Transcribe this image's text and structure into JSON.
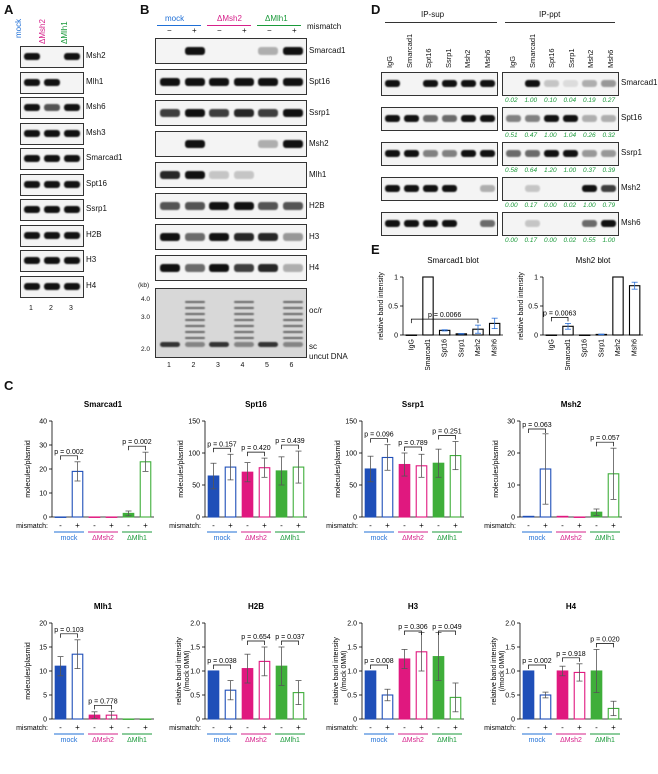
{
  "panels": {
    "A": "A",
    "B": "B",
    "C": "C",
    "D": "D",
    "E": "E"
  },
  "genotypes": {
    "mock": "mock",
    "dmsh2": "ΔMsh2",
    "dmlh1": "ΔMlh1"
  },
  "panelA": {
    "rows": [
      "Msh2",
      "Mlh1",
      "Msh6",
      "Msh3",
      "Smarcad1",
      "Spt16",
      "Ssrp1",
      "H2B",
      "H3",
      "H4"
    ],
    "lanes": [
      "1",
      "2",
      "3"
    ]
  },
  "panelB": {
    "mismatch_label": "mismatch",
    "signs": [
      "−",
      "+",
      "−",
      "+",
      "−",
      "+"
    ],
    "rows": [
      "Smarcad1",
      "Spt16",
      "Ssrp1",
      "Msh2",
      "Mlh1",
      "H2B",
      "H3",
      "H4"
    ],
    "gel_kb_label": "(kb)",
    "gel_ticks": [
      "4.0",
      "3.0",
      "2.0"
    ],
    "gel_labels": [
      "oc/r",
      "sc",
      "uncut DNA"
    ],
    "lanes": [
      "1",
      "2",
      "3",
      "4",
      "5",
      "6"
    ]
  },
  "panelD": {
    "groups": [
      "IP-sup",
      "IP-ppt"
    ],
    "lanes": [
      "IgG",
      "Smarcad1",
      "Spt16",
      "Ssrp1",
      "Msh2",
      "Msh6",
      "IgG",
      "Smarcad1",
      "Spt16",
      "Ssrp1",
      "Msh2",
      "Msh6"
    ],
    "rows": [
      {
        "name": "Smarcad1",
        "quant": [
          "0.02",
          "1.00",
          "0.10",
          "0.04",
          "0.19",
          "0.27"
        ]
      },
      {
        "name": "Spt16",
        "quant": [
          "0.51",
          "0.47",
          "1.00",
          "1.04",
          "0.26",
          "0.32"
        ]
      },
      {
        "name": "Ssrp1",
        "quant": [
          "0.58",
          "0.64",
          "1.20",
          "1.00",
          "0.37",
          "0.39"
        ]
      },
      {
        "name": "Msh2",
        "quant": [
          "0.00",
          "0.17",
          "0.00",
          "0.02",
          "1.00",
          "0.79"
        ]
      },
      {
        "name": "Msh6",
        "quant": [
          "0.00",
          "0.17",
          "0.00",
          "0.02",
          "0.55",
          "1.00"
        ]
      }
    ]
  },
  "panelE": {
    "ylabel": "relative band intensity",
    "plots": [
      {
        "title": "Smarcad1 blot",
        "p": "p = 0.0066"
      },
      {
        "title": "Msh2 blot",
        "p": "p = 0.0063"
      }
    ]
  },
  "panelC": {
    "mismatch_label": "mismatch:",
    "signs": [
      "-",
      "+",
      "-",
      "+",
      "-",
      "+"
    ]
  },
  "chart_data": [
    {
      "type": "bar",
      "title": "Smarcad1",
      "ylabel": "relative band intensity",
      "categories": [
        "IgG",
        "Smarcad1",
        "Spt16",
        "Ssrp1",
        "Msh2",
        "Msh6"
      ],
      "values": [
        0.0,
        1.0,
        0.08,
        0.02,
        0.1,
        0.2
      ],
      "ylim": [
        0,
        1
      ],
      "yticks": [
        "0",
        "0.5",
        "1"
      ]
    },
    {
      "type": "bar",
      "title": "Msh2",
      "ylabel": "relative band intensity",
      "categories": [
        "IgG",
        "Smarcad1",
        "Spt16",
        "Ssrp1",
        "Msh2",
        "Msh6"
      ],
      "values": [
        0.0,
        0.15,
        0.0,
        0.01,
        1.0,
        0.85
      ],
      "ylim": [
        0,
        1
      ],
      "yticks": [
        "0",
        "0.5",
        "1"
      ]
    },
    {
      "type": "bar",
      "title": "Smarcad1",
      "ylabel": "molecules/plasmid",
      "ylim": [
        0,
        40
      ],
      "yticks": [
        "0",
        "10",
        "20",
        "30",
        "40"
      ],
      "values": [
        0,
        19,
        0,
        0,
        1.5,
        23
      ],
      "err": [
        0,
        4,
        0,
        0,
        1,
        4
      ],
      "pvals": [
        "p = 0.002",
        "p = 0.002"
      ],
      "pairs": [
        [
          0,
          1
        ],
        [
          4,
          5
        ]
      ]
    },
    {
      "type": "bar",
      "title": "Spt16",
      "ylabel": "molecules/plasmid",
      "ylim": [
        0,
        150
      ],
      "yticks": [
        "0",
        "50",
        "100",
        "150"
      ],
      "values": [
        64,
        78,
        70,
        77,
        72,
        78
      ],
      "err": [
        20,
        20,
        15,
        15,
        22,
        25
      ],
      "pvals": [
        "p = 0.157",
        "p = 0.420",
        "p = 0.439"
      ],
      "pairs": [
        [
          0,
          1
        ],
        [
          2,
          3
        ],
        [
          4,
          5
        ]
      ]
    },
    {
      "type": "bar",
      "title": "Ssrp1",
      "ylabel": "molecules/plasmid",
      "ylim": [
        0,
        150
      ],
      "yticks": [
        "0",
        "50",
        "100",
        "150"
      ],
      "values": [
        75,
        93,
        82,
        80,
        84,
        96
      ],
      "err": [
        20,
        20,
        18,
        18,
        22,
        22
      ],
      "pvals": [
        "p = 0.096",
        "p = 0.789",
        "p = 0.251"
      ],
      "pairs": [
        [
          0,
          1
        ],
        [
          2,
          3
        ],
        [
          4,
          5
        ]
      ]
    },
    {
      "type": "bar",
      "title": "Msh2",
      "ylabel": "molecules/plasmid",
      "ylim": [
        0,
        30
      ],
      "yticks": [
        "0",
        "10",
        "20",
        "30"
      ],
      "values": [
        0.2,
        15,
        0.2,
        0,
        1.5,
        13.5
      ],
      "err": [
        0,
        11,
        0,
        0,
        1,
        8
      ],
      "pvals": [
        "p = 0.063",
        "p = 0.057"
      ],
      "pairs": [
        [
          0,
          1
        ],
        [
          4,
          5
        ]
      ]
    },
    {
      "type": "bar",
      "title": "Mlh1",
      "ylabel": "molecules/plasmid",
      "ylim": [
        0,
        20
      ],
      "yticks": [
        "0",
        "5",
        "10",
        "15",
        "20"
      ],
      "values": [
        11,
        13.5,
        0.8,
        0.8,
        0,
        0
      ],
      "err": [
        2,
        3,
        0.7,
        0.8,
        0,
        0
      ],
      "pvals": [
        "p = 0.103",
        "p = 0.778"
      ],
      "pairs": [
        [
          0,
          1
        ],
        [
          2,
          3
        ]
      ]
    },
    {
      "type": "bar",
      "title": "H2B",
      "ylabel": "relative band intensity (/mock 0MM)",
      "ylim": [
        0,
        2.0
      ],
      "yticks": [
        "0",
        "0.5",
        "1.0",
        "1.5",
        "2.0"
      ],
      "values": [
        1.0,
        0.6,
        1.05,
        1.2,
        1.1,
        0.55
      ],
      "err": [
        0,
        0.2,
        0.3,
        0.3,
        0.4,
        0.25
      ],
      "pvals": [
        "p = 0.038",
        "p = 0.654",
        "p = 0.037"
      ],
      "pairs": [
        [
          0,
          1
        ],
        [
          2,
          3
        ],
        [
          4,
          5
        ]
      ]
    },
    {
      "type": "bar",
      "title": "H3",
      "ylabel": "relative band intensity (/mock 0MM)",
      "ylim": [
        0,
        2.0
      ],
      "yticks": [
        "0",
        "0.5",
        "1.0",
        "1.5",
        "2.0"
      ],
      "values": [
        1.0,
        0.5,
        1.25,
        1.4,
        1.3,
        0.45
      ],
      "err": [
        0,
        0.12,
        0.2,
        0.4,
        0.5,
        0.3
      ],
      "pvals": [
        "p = 0.008",
        "p = 0.306",
        "p = 0.049"
      ],
      "pairs": [
        [
          0,
          1
        ],
        [
          2,
          3
        ],
        [
          4,
          5
        ]
      ]
    },
    {
      "type": "bar",
      "title": "H4",
      "ylabel": "relative band intensity (/mock 0MM)",
      "ylim": [
        0,
        2.0
      ],
      "yticks": [
        "0",
        "0.5",
        "1.0",
        "1.5",
        "2.0"
      ],
      "values": [
        1.0,
        0.5,
        1.0,
        0.97,
        1.0,
        0.22
      ],
      "err": [
        0,
        0.06,
        0.1,
        0.18,
        0.45,
        0.15
      ],
      "pvals": [
        "p = 0.002",
        "p = 0.918",
        "p = 0.020"
      ],
      "pairs": [
        [
          0,
          1
        ],
        [
          2,
          3
        ],
        [
          4,
          5
        ]
      ]
    }
  ],
  "colors": {
    "mock": "#1f4fb8",
    "dmsh2": "#e0187f",
    "dmlh1": "#3fae3a"
  }
}
